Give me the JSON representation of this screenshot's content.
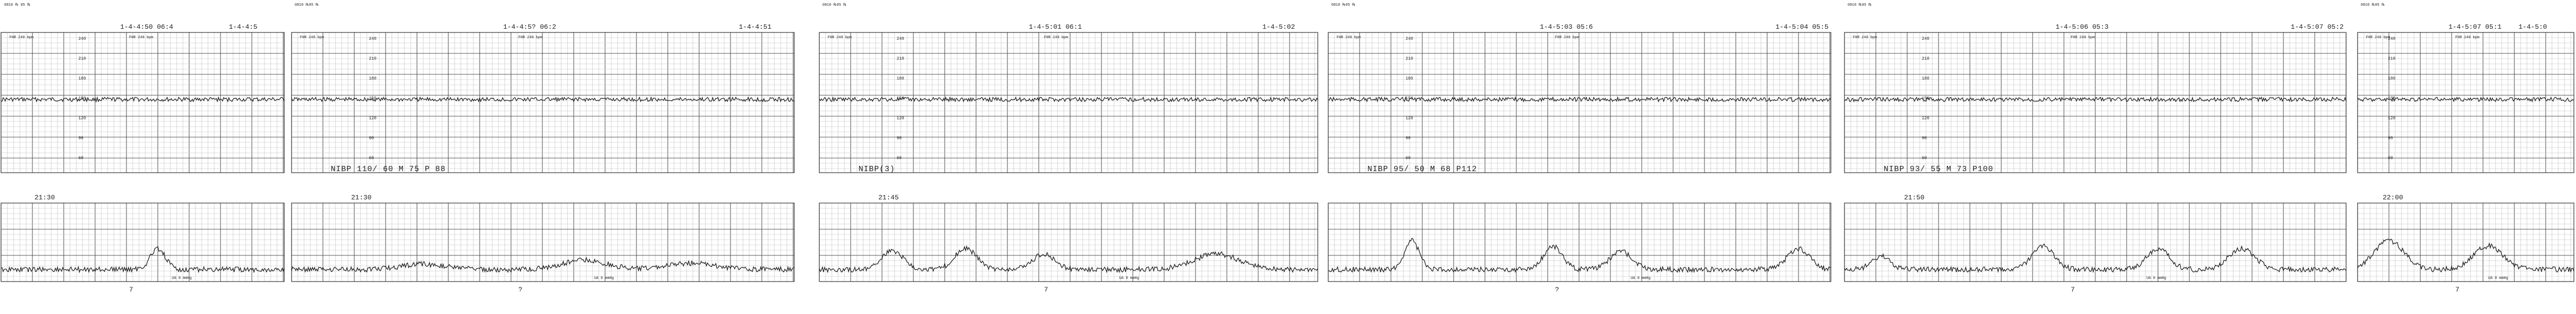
{
  "strips": [
    {
      "header_left": "0810 ℞ 05 ℞",
      "header_mid": "1-4-4:50  06:4",
      "header_right": "1-4-4:5",
      "row_label_a": "FHR  240 bpm",
      "row_label_b": "FHR  240 bpm",
      "nibp": "",
      "time": "21:30",
      "page_number": "7"
    },
    {
      "header_left": "0810  ℞05 ℞",
      "header_mid": "1-4-4:5?  06:2",
      "header_right": "1-4-4:51",
      "row_label_a": "FHR  240 bpm",
      "row_label_b": "FHR  240 bpm",
      "nibp": "NIBP 110/ 60 M 75 P 88",
      "time": "21:30",
      "page_number": "?"
    },
    {
      "header_left": "0810  ℞05 ℞",
      "header_mid": "1-4-5:01  06:1",
      "header_right": "1-4-5:02",
      "row_label_a": "FHR  240 bpm",
      "row_label_b": "FHR  240 bpm",
      "nibp": "NIBP(3)",
      "time": "21:45",
      "page_number": "7"
    },
    {
      "header_left": "0810  ℞05 ℞",
      "header_mid": "1-4-5:03  05:6",
      "header_right": "1-4-5:04  05:5",
      "row_label_a": "FHR  240 bpm",
      "row_label_b": "FHR  240 bpm",
      "nibp": "NIBP  95/ 50 M 68 P112",
      "time": "",
      "page_number": "?"
    },
    {
      "header_left": "0810  ℞05 ℞",
      "header_mid": "1-4-5:06  05:3",
      "header_right": "1-4-5:07  05:2",
      "row_label_a": "FHR  240 bpm",
      "row_label_b": "FHR  240 bpm",
      "nibp": "NIBP  93/ 55 M 73 P100",
      "time": "21:50",
      "page_number": "7"
    },
    {
      "header_left": "0810  ℞05 ℞",
      "header_mid": "1-4-5:07  05:1",
      "header_right": "1-4-5:0",
      "row_label_a": "FHR  240 bpm",
      "row_label_b": "FHR  240 bpm",
      "nibp": "",
      "time": "22:00",
      "page_number": "7"
    }
  ],
  "toco_label": "UA  0 mmHg"
}
